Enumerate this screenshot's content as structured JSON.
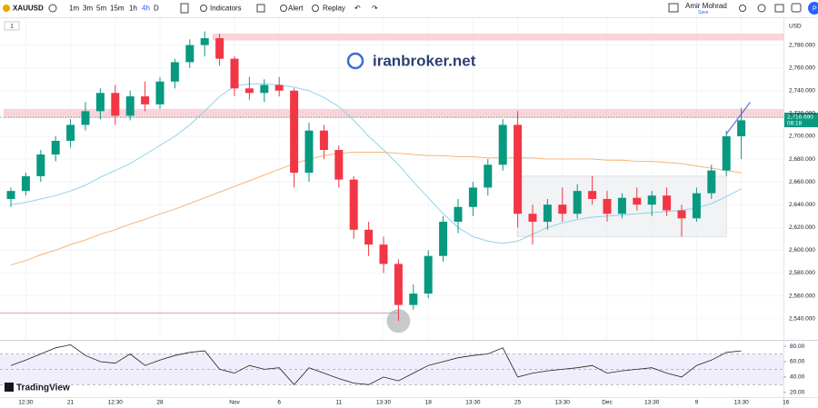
{
  "toolbar": {
    "symbol": "XAUUSD",
    "intervals": [
      "1m",
      "3m",
      "5m",
      "15m",
      "1h",
      "4h",
      "D"
    ],
    "active_interval": 5,
    "buttons": [
      "Indicators",
      "Alert",
      "Replay"
    ],
    "user": "Amir Mohrad",
    "user_status": "Save",
    "avatar": "P"
  },
  "pane_label": "1",
  "watermark": "iranbroker.net",
  "logo": "TradingView",
  "chart_data": {
    "type": "candlestick",
    "currency": "USD",
    "categories": [
      null,
      "12:30",
      null,
      null,
      "21",
      null,
      null,
      "12:30",
      null,
      null,
      "28",
      null,
      null,
      null,
      null,
      "Nov",
      null,
      null,
      "6",
      null,
      null,
      null,
      "11",
      null,
      null,
      "13:30",
      null,
      null,
      "18",
      null,
      null,
      "13:30",
      null,
      null,
      "25",
      null,
      null,
      "13:30",
      null,
      null,
      "Dec",
      null,
      null,
      "13:30",
      null,
      null,
      "9",
      null,
      null,
      "13:30",
      null,
      null,
      "16"
    ],
    "ohlc": [
      [
        2645,
        2655,
        2638,
        2652
      ],
      [
        2652,
        2668,
        2648,
        2665
      ],
      [
        2665,
        2688,
        2660,
        2684
      ],
      [
        2684,
        2700,
        2678,
        2696
      ],
      [
        2696,
        2715,
        2690,
        2710
      ],
      [
        2710,
        2730,
        2705,
        2722
      ],
      [
        2722,
        2742,
        2715,
        2738
      ],
      [
        2738,
        2745,
        2710,
        2718
      ],
      [
        2718,
        2740,
        2714,
        2735
      ],
      [
        2735,
        2748,
        2722,
        2728
      ],
      [
        2728,
        2752,
        2724,
        2748
      ],
      [
        2748,
        2768,
        2742,
        2765
      ],
      [
        2765,
        2785,
        2760,
        2780
      ],
      [
        2780,
        2792,
        2770,
        2786
      ],
      [
        2786,
        2790,
        2762,
        2768
      ],
      [
        2768,
        2770,
        2735,
        2742
      ],
      [
        2742,
        2752,
        2732,
        2738
      ],
      [
        2738,
        2750,
        2730,
        2745
      ],
      [
        2745,
        2752,
        2735,
        2740
      ],
      [
        2740,
        2742,
        2655,
        2668
      ],
      [
        2668,
        2712,
        2660,
        2705
      ],
      [
        2705,
        2710,
        2680,
        2688
      ],
      [
        2688,
        2692,
        2655,
        2662
      ],
      [
        2662,
        2665,
        2610,
        2618
      ],
      [
        2618,
        2625,
        2595,
        2605
      ],
      [
        2605,
        2612,
        2580,
        2588
      ],
      [
        2588,
        2592,
        2538,
        2552
      ],
      [
        2552,
        2570,
        2548,
        2562
      ],
      [
        2562,
        2600,
        2558,
        2595
      ],
      [
        2595,
        2630,
        2590,
        2625
      ],
      [
        2625,
        2645,
        2615,
        2638
      ],
      [
        2638,
        2660,
        2630,
        2655
      ],
      [
        2655,
        2680,
        2648,
        2675
      ],
      [
        2675,
        2715,
        2670,
        2710
      ],
      [
        2710,
        2722,
        2620,
        2632
      ],
      [
        2632,
        2640,
        2605,
        2625
      ],
      [
        2625,
        2645,
        2618,
        2640
      ],
      [
        2640,
        2655,
        2625,
        2632
      ],
      [
        2632,
        2658,
        2628,
        2652
      ],
      [
        2652,
        2665,
        2640,
        2645
      ],
      [
        2645,
        2652,
        2625,
        2632
      ],
      [
        2632,
        2650,
        2628,
        2646
      ],
      [
        2646,
        2655,
        2635,
        2640
      ],
      [
        2640,
        2652,
        2630,
        2648
      ],
      [
        2648,
        2655,
        2630,
        2635
      ],
      [
        2635,
        2640,
        2612,
        2628
      ],
      [
        2628,
        2655,
        2625,
        2650
      ],
      [
        2650,
        2675,
        2645,
        2670
      ],
      [
        2670,
        2705,
        2665,
        2700
      ],
      [
        2700,
        2725,
        2680,
        2714
      ],
      null,
      null,
      null
    ],
    "up_color": "#089981",
    "down_color": "#f23645",
    "moving_averages": [
      {
        "color": "#8fd3ea",
        "values": [
          2640,
          2642,
          2645,
          2648,
          2652,
          2657,
          2664,
          2670,
          2676,
          2684,
          2692,
          2700,
          2710,
          2722,
          2735,
          2744,
          2746,
          2746,
          2745,
          2743,
          2740,
          2734,
          2726,
          2714,
          2700,
          2688,
          2675,
          2660,
          2646,
          2632,
          2620,
          2612,
          2608,
          2606,
          2608,
          2614,
          2620,
          2624,
          2627,
          2629,
          2630,
          2631,
          2632,
          2633,
          2634,
          2635,
          2637,
          2641,
          2647,
          2654,
          null,
          null,
          null
        ]
      },
      {
        "color": "#f5b57a",
        "values": [
          2587,
          2591,
          2596,
          2600,
          2605,
          2609,
          2614,
          2618,
          2623,
          2627,
          2632,
          2636,
          2641,
          2646,
          2651,
          2656,
          2661,
          2666,
          2671,
          2676,
          2680,
          2683,
          2685,
          2686,
          2686,
          2686,
          2685,
          2684,
          2683,
          2683,
          2682,
          2682,
          2681,
          2681,
          2681,
          2681,
          2680,
          2680,
          2680,
          2680,
          2679,
          2679,
          2678,
          2678,
          2677,
          2676,
          2674,
          2672,
          2670,
          2668,
          null,
          null,
          null
        ]
      }
    ],
    "zones": [
      {
        "from": 14,
        "top": 2790,
        "bottom": 2784
      },
      {
        "from": 0,
        "top": 2724,
        "bottom": 2716
      }
    ],
    "box": {
      "from": 34,
      "to": 48,
      "top": 2665,
      "bottom": 2612
    },
    "hline": {
      "value": 2545,
      "to": 26
    },
    "trend_line": {
      "x": [
        48,
        49.6
      ],
      "y": [
        2702,
        2730
      ]
    },
    "last_price": {
      "value": 2716.69,
      "label": "2,716.690"
    },
    "countdown": "08:18",
    "ylim": [
      2523,
      2802
    ],
    "yticks": [
      {
        "value": 2540,
        "label": "2,540.000"
      },
      {
        "value": 2560,
        "label": "2,560.000"
      },
      {
        "value": 2580,
        "label": "2,580.000"
      },
      {
        "value": 2600,
        "label": "2,600.000"
      },
      {
        "value": 2620,
        "label": "2,620.000"
      },
      {
        "value": 2640,
        "label": "2,640.000"
      },
      {
        "value": 2660,
        "label": "2,660.000"
      },
      {
        "value": 2680,
        "label": "2,680.000"
      },
      {
        "value": 2700,
        "label": "2,700.000"
      },
      {
        "value": 2720,
        "label": "2,720.000"
      },
      {
        "value": 2740,
        "label": "2,740.000"
      },
      {
        "value": 2760,
        "label": "2,760.000"
      },
      {
        "value": 2780,
        "label": "2,780.000"
      }
    ],
    "rsi": {
      "type": "line",
      "color": "#222",
      "values": [
        55,
        62,
        70,
        78,
        82,
        68,
        60,
        58,
        70,
        55,
        62,
        68,
        72,
        74,
        50,
        45,
        55,
        50,
        52,
        30,
        52,
        45,
        38,
        32,
        30,
        40,
        35,
        45,
        55,
        60,
        65,
        68,
        70,
        78,
        40,
        45,
        48,
        50,
        52,
        55,
        45,
        48,
        50,
        52,
        45,
        40,
        55,
        62,
        72,
        74,
        null,
        null,
        null
      ],
      "levels": [
        70,
        50,
        30
      ],
      "ylim": [
        15,
        86
      ],
      "yticks": [
        {
          "value": 20,
          "label": "20.00"
        },
        {
          "value": 40,
          "label": "40.00"
        },
        {
          "value": 60,
          "label": "60.00"
        },
        {
          "value": 80,
          "label": "80.00"
        }
      ]
    }
  }
}
